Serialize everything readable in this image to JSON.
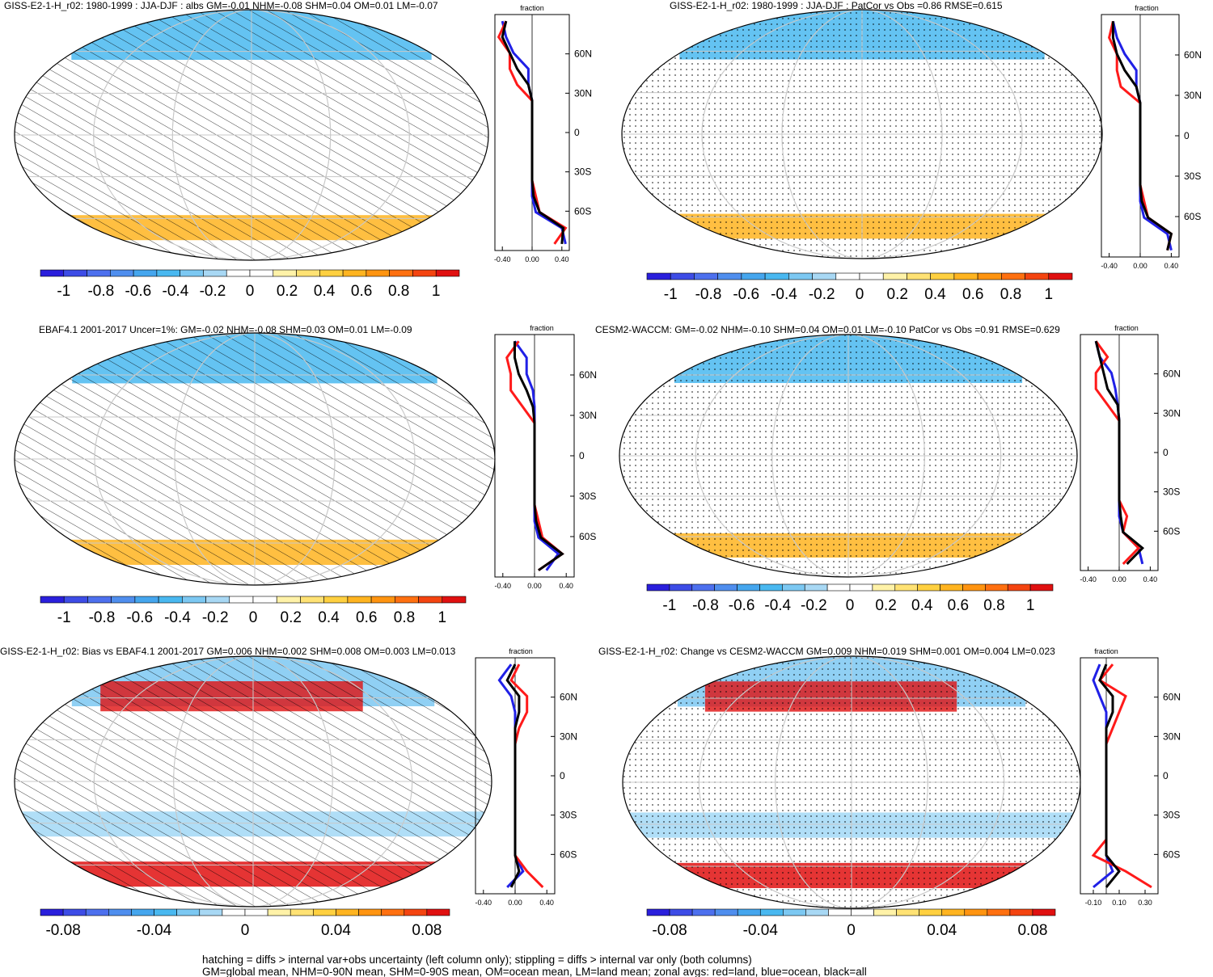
{
  "colors": {
    "scale": [
      "#2a1fdc",
      "#3d4ce6",
      "#4d70ee",
      "#4f8eee",
      "#45a6ee",
      "#49b8f0",
      "#7cc8f2",
      "#a8d8f4",
      "#ffffff",
      "#ffffff",
      "#fff2a8",
      "#ffe274",
      "#ffd040",
      "#ffb420",
      "#ff9410",
      "#ff7010",
      "#f44410",
      "#e01010"
    ],
    "land_line": "#ff1a1a",
    "ocean_line": "#2020e6",
    "all_line": "#000000",
    "grid": "#c8c8c8"
  },
  "panels": [
    {
      "title": "GISS-E2-1-H_r02: 1980-1999 : JJA-DJF : albs GM=-0.01 NHM=-0.08 SHM=0.04 OM=0.01 LM=-0.07",
      "overlay": "hatch",
      "colorbar_labels": [
        "-1",
        "-0.8",
        "-0.6",
        "-0.4",
        "-0.2",
        "0",
        "0.2",
        "0.4",
        "0.6",
        "0.8",
        "1"
      ],
      "profile": {
        "header": "fraction",
        "lat_labels": [
          "60N",
          "30N",
          "0",
          "30S",
          "60S"
        ],
        "x_labels": [
          "-0.40",
          "0.00",
          "0.40"
        ]
      }
    },
    {
      "title": "GISS-E2-1-H_r02: 1980-1999 : JJA-DJF : PatCor vs Obs =0.86 RMSE=0.615",
      "overlay": "stipple",
      "colorbar_labels": [
        "-1",
        "-0.8",
        "-0.6",
        "-0.4",
        "-0.2",
        "0",
        "0.2",
        "0.4",
        "0.6",
        "0.8",
        "1"
      ],
      "profile": {
        "header": "fraction",
        "lat_labels": [
          "60N",
          "30N",
          "0",
          "30S",
          "60S"
        ],
        "x_labels": [
          "-0.40",
          "0.00",
          "0.40"
        ]
      }
    },
    {
      "title": "EBAF4.1 2001-2017 Uncer=1%: GM=-0.02 NHM=-0.08 SHM=0.03 OM=0.01 LM=-0.09",
      "overlay": "hatch",
      "colorbar_labels": [
        "-1",
        "-0.8",
        "-0.6",
        "-0.4",
        "-0.2",
        "0",
        "0.2",
        "0.4",
        "0.6",
        "0.8",
        "1"
      ],
      "profile": {
        "header": "fraction",
        "lat_labels": [
          "60N",
          "30N",
          "0",
          "30S",
          "60S"
        ],
        "x_labels": [
          "-0.40",
          "0.00",
          "0.40"
        ]
      }
    },
    {
      "title": "CESM2-WACCM: GM=-0.02 NHM=-0.10 SHM=0.04 OM=0.01 LM=-0.10 PatCor vs Obs =0.91 RMSE=0.629",
      "overlay": "stipple",
      "colorbar_labels": [
        "-1",
        "-0.8",
        "-0.6",
        "-0.4",
        "-0.2",
        "0",
        "0.2",
        "0.4",
        "0.6",
        "0.8",
        "1"
      ],
      "profile": {
        "header": "fraction",
        "lat_labels": [
          "60N",
          "30N",
          "0",
          "30S",
          "60S"
        ],
        "x_labels": [
          "-0.40",
          "0.00",
          "0.40"
        ]
      }
    },
    {
      "title": "GISS-E2-1-H_r02: Bias vs EBAF4.1 2001-2017 GM=0.006 NHM=0.002 SHM=0.008 OM=0.003 LM=0.013",
      "overlay": "hatch",
      "colorbar_labels": [
        "-0.08",
        "-0.04",
        "0",
        "0.04",
        "0.08"
      ],
      "profile": {
        "header": "fraction",
        "lat_labels": [
          "60N",
          "30N",
          "0",
          "30S",
          "60S"
        ],
        "x_labels": [
          "-0.40",
          "0.00",
          "0.40"
        ]
      }
    },
    {
      "title": "GISS-E2-1-H_r02: Change vs CESM2-WACCM GM=0.009 NHM=0.019 SHM=0.001 OM=0.004 LM=0.023",
      "overlay": "stipple",
      "colorbar_labels": [
        "-0.08",
        "-0.04",
        "0",
        "0.04",
        "0.08"
      ],
      "profile": {
        "header": "fraction",
        "lat_labels": [
          "60N",
          "30N",
          "0",
          "30S",
          "60S"
        ],
        "x_labels": [
          "-0.10",
          "0.10",
          "0.30"
        ]
      }
    }
  ],
  "footer": [
    "hatching = diffs > internal var+obs uncertainty (left column only); stippling = diffs > internal var only (both columns)",
    "GM=global mean, NHM=0-90N mean, SHM=0-90S mean, OM=ocean mean, LM=land mean; zonal avgs: red=land, blue=ocean, black=all"
  ]
}
